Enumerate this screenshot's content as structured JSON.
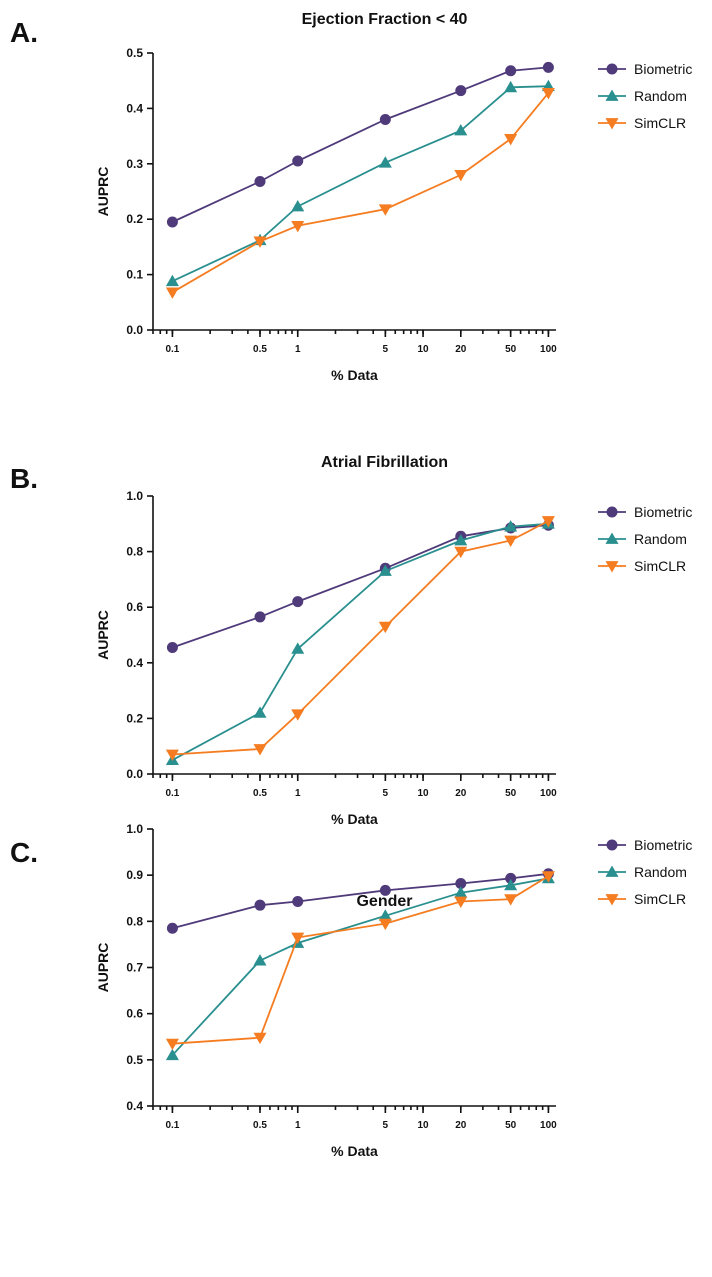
{
  "colors": {
    "Biometric": "#4f3a7a",
    "Random": "#2a8f8f",
    "SimCLR": "#f57c20"
  },
  "chart_data": [
    {
      "type": "line",
      "panel": "A.",
      "title": "Ejection Fraction < 40",
      "xlabel": "% Data",
      "ylabel": "AUPRC",
      "xscale": "log",
      "x": [
        0.1,
        0.5,
        1,
        5,
        20,
        50,
        100
      ],
      "x_ticks": [
        0.1,
        0.5,
        1,
        5,
        10,
        20,
        50,
        100
      ],
      "x_tick_labels": [
        "0.1",
        "0.5",
        "1",
        "5",
        "10",
        "20",
        "50",
        "100"
      ],
      "ylim": [
        0.0,
        0.5
      ],
      "y_ticks": [
        0.0,
        0.1,
        0.2,
        0.3,
        0.4,
        0.5
      ],
      "y_tick_labels": [
        "0.0",
        "0.1",
        "0.2",
        "0.3",
        "0.4",
        "0.5"
      ],
      "grid": false,
      "legend": "right",
      "series": [
        {
          "name": "Biometric",
          "marker": "circle",
          "values": [
            0.195,
            0.268,
            0.305,
            0.38,
            0.432,
            0.468,
            0.474
          ]
        },
        {
          "name": "Random",
          "marker": "triangle-up",
          "values": [
            0.088,
            0.162,
            0.223,
            0.302,
            0.36,
            0.438,
            0.44
          ]
        },
        {
          "name": "SimCLR",
          "marker": "triangle-down",
          "values": [
            0.068,
            0.16,
            0.188,
            0.218,
            0.28,
            0.345,
            0.428
          ]
        }
      ]
    },
    {
      "type": "line",
      "panel": "B.",
      "title": "Atrial Fibrillation",
      "xlabel": "% Data",
      "ylabel": "AUPRC",
      "xscale": "log",
      "x": [
        0.1,
        0.5,
        1,
        5,
        20,
        50,
        100
      ],
      "x_ticks": [
        0.1,
        0.5,
        1,
        5,
        10,
        20,
        50,
        100
      ],
      "x_tick_labels": [
        "0.1",
        "0.5",
        "1",
        "5",
        "10",
        "20",
        "50",
        "100"
      ],
      "ylim": [
        0.0,
        1.0
      ],
      "y_ticks": [
        0.0,
        0.2,
        0.4,
        0.6,
        0.8,
        1.0
      ],
      "y_tick_labels": [
        "0.0",
        "0.2",
        "0.4",
        "0.6",
        "0.8",
        "1.0"
      ],
      "grid": false,
      "legend": "right",
      "series": [
        {
          "name": "Biometric",
          "marker": "circle",
          "values": [
            0.455,
            0.565,
            0.62,
            0.74,
            0.855,
            0.885,
            0.895
          ]
        },
        {
          "name": "Random",
          "marker": "triangle-up",
          "values": [
            0.05,
            0.22,
            0.45,
            0.73,
            0.84,
            0.89,
            0.9
          ]
        },
        {
          "name": "SimCLR",
          "marker": "triangle-down",
          "values": [
            0.07,
            0.09,
            0.215,
            0.53,
            0.8,
            0.84,
            0.91
          ]
        }
      ]
    },
    {
      "type": "line",
      "panel": "C.",
      "title": "Gender",
      "xlabel": "% Data",
      "ylabel": "AUPRC",
      "xscale": "log",
      "x": [
        0.1,
        0.5,
        1,
        5,
        20,
        50,
        100
      ],
      "x_ticks": [
        0.1,
        0.5,
        1,
        5,
        10,
        20,
        50,
        100
      ],
      "x_tick_labels": [
        "0.1",
        "0.5",
        "1",
        "5",
        "10",
        "20",
        "50",
        "100"
      ],
      "ylim": [
        0.4,
        1.0
      ],
      "y_ticks": [
        0.4,
        0.5,
        0.6,
        0.7,
        0.8,
        0.9,
        1.0
      ],
      "y_tick_labels": [
        "0.4",
        "0.5",
        "0.6",
        "0.7",
        "0.8",
        "0.9",
        "1.0"
      ],
      "grid": false,
      "legend": "right",
      "series": [
        {
          "name": "Biometric",
          "marker": "circle",
          "values": [
            0.785,
            0.835,
            0.843,
            0.867,
            0.882,
            0.893,
            0.903
          ]
        },
        {
          "name": "Random",
          "marker": "triangle-up",
          "values": [
            0.51,
            0.715,
            0.753,
            0.812,
            0.862,
            0.878,
            0.893
          ]
        },
        {
          "name": "SimCLR",
          "marker": "triangle-down",
          "values": [
            0.535,
            0.548,
            0.765,
            0.795,
            0.843,
            0.848,
            0.898
          ]
        }
      ]
    }
  ]
}
